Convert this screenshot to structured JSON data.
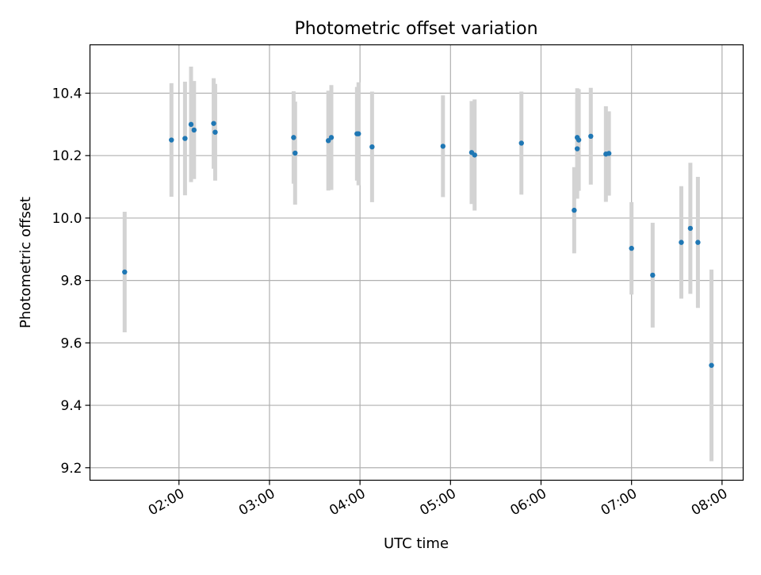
{
  "chart_data": {
    "type": "scatter",
    "title": "Photometric offset variation",
    "xlabel": "UTC time",
    "ylabel": "Photometric offset",
    "grid": true,
    "x_ticks": [
      "02:00",
      "03:00",
      "04:00",
      "05:00",
      "06:00",
      "07:00",
      "08:00"
    ],
    "y_ticks": [
      "9.2",
      "9.4",
      "9.6",
      "9.8",
      "10.0",
      "10.2",
      "10.4"
    ],
    "xlim": [
      "01:01",
      "08:14"
    ],
    "ylim": [
      9.16,
      10.555
    ],
    "colors": {
      "point": "#1f77b4",
      "errorbar": "#d3d3d3",
      "grid": "#b0b0b0"
    },
    "points": [
      {
        "x": "01:24",
        "y": 9.827,
        "err": 0.193
      },
      {
        "x": "01:55",
        "y": 10.25,
        "err": 0.182
      },
      {
        "x": "02:04",
        "y": 10.255,
        "err": 0.182
      },
      {
        "x": "02:08",
        "y": 10.3,
        "err": 0.185
      },
      {
        "x": "02:10",
        "y": 10.282,
        "err": 0.157
      },
      {
        "x": "02:23",
        "y": 10.303,
        "err": 0.145
      },
      {
        "x": "02:24",
        "y": 10.275,
        "err": 0.155
      },
      {
        "x": "03:16",
        "y": 10.258,
        "err": 0.148
      },
      {
        "x": "03:17",
        "y": 10.208,
        "err": 0.165
      },
      {
        "x": "03:39",
        "y": 10.248,
        "err": 0.16
      },
      {
        "x": "03:41",
        "y": 10.258,
        "err": 0.168
      },
      {
        "x": "03:58",
        "y": 10.27,
        "err": 0.15
      },
      {
        "x": "03:59",
        "y": 10.27,
        "err": 0.165
      },
      {
        "x": "04:08",
        "y": 10.228,
        "err": 0.177
      },
      {
        "x": "04:55",
        "y": 10.23,
        "err": 0.163
      },
      {
        "x": "05:14",
        "y": 10.21,
        "err": 0.165
      },
      {
        "x": "05:16",
        "y": 10.202,
        "err": 0.178
      },
      {
        "x": "05:47",
        "y": 10.24,
        "err": 0.165
      },
      {
        "x": "06:22",
        "y": 10.025,
        "err": 0.138
      },
      {
        "x": "06:24",
        "y": 10.222,
        "err": 0.16
      },
      {
        "x": "06:24",
        "y": 10.258,
        "err": 0.158
      },
      {
        "x": "06:25",
        "y": 10.25,
        "err": 0.163
      },
      {
        "x": "06:33",
        "y": 10.262,
        "err": 0.155
      },
      {
        "x": "06:43",
        "y": 10.205,
        "err": 0.153
      },
      {
        "x": "06:45",
        "y": 10.207,
        "err": 0.135
      },
      {
        "x": "07:00",
        "y": 9.903,
        "err": 0.148
      },
      {
        "x": "07:14",
        "y": 9.817,
        "err": 0.168
      },
      {
        "x": "07:33",
        "y": 9.922,
        "err": 0.18
      },
      {
        "x": "07:39",
        "y": 9.967,
        "err": 0.21
      },
      {
        "x": "07:44",
        "y": 9.922,
        "err": 0.21
      },
      {
        "x": "07:53",
        "y": 9.528,
        "err": 0.307
      }
    ]
  }
}
